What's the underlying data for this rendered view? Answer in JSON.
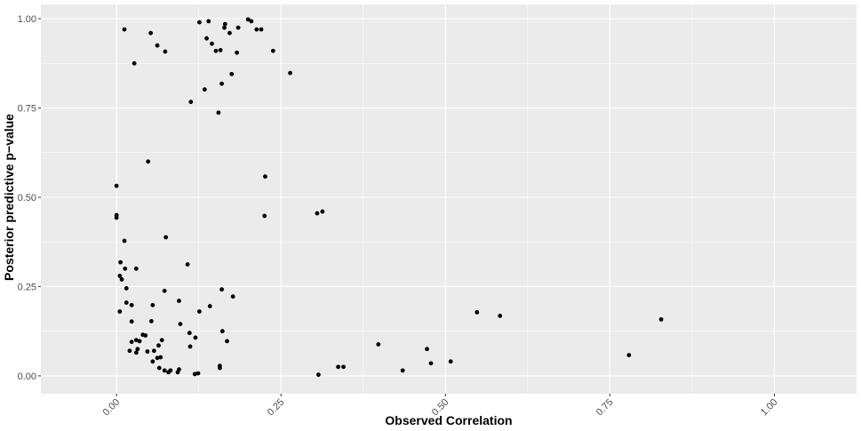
{
  "chart_data": {
    "type": "scatter",
    "title": "",
    "xlabel": "Observed Correlation",
    "ylabel": "Posterior predictive p−value",
    "xlim": [
      -0.115,
      1.125
    ],
    "ylim": [
      -0.05,
      1.04
    ],
    "x_ticks": [
      {
        "value": 0.0,
        "label": "0.00"
      },
      {
        "value": 0.25,
        "label": "0.25"
      },
      {
        "value": 0.5,
        "label": "0.50"
      },
      {
        "value": 0.75,
        "label": "0.75"
      },
      {
        "value": 1.0,
        "label": "1.00"
      }
    ],
    "y_ticks": [
      {
        "value": 0.0,
        "label": "0.00"
      },
      {
        "value": 0.25,
        "label": "0.25"
      },
      {
        "value": 0.5,
        "label": "0.50"
      },
      {
        "value": 0.75,
        "label": "0.75"
      },
      {
        "value": 1.0,
        "label": "1.00"
      }
    ],
    "grid": true,
    "legend": "none",
    "colors": {
      "panel": "#ebebeb",
      "grid": "#ffffff",
      "point": "#000000"
    },
    "points": [
      [
        0.012,
        0.97
      ],
      [
        0.052,
        0.96
      ],
      [
        0.062,
        0.925
      ],
      [
        0.027,
        0.875
      ],
      [
        0.074,
        0.908
      ],
      [
        0.126,
        0.99
      ],
      [
        0.14,
        0.993
      ],
      [
        0.137,
        0.945
      ],
      [
        0.145,
        0.93
      ],
      [
        0.151,
        0.91
      ],
      [
        0.158,
        0.912
      ],
      [
        0.164,
        0.975
      ],
      [
        0.165,
        0.985
      ],
      [
        0.172,
        0.96
      ],
      [
        0.185,
        0.975
      ],
      [
        0.2,
        0.998
      ],
      [
        0.205,
        0.993
      ],
      [
        0.213,
        0.97
      ],
      [
        0.22,
        0.97
      ],
      [
        0.183,
        0.905
      ],
      [
        0.238,
        0.91
      ],
      [
        0.134,
        0.802
      ],
      [
        0.16,
        0.818
      ],
      [
        0.175,
        0.845
      ],
      [
        0.113,
        0.767
      ],
      [
        0.264,
        0.848
      ],
      [
        0.155,
        0.737
      ],
      [
        0.048,
        0.6
      ],
      [
        0.0,
        0.532
      ],
      [
        0.0,
        0.45
      ],
      [
        0.0,
        0.443
      ],
      [
        0.226,
        0.558
      ],
      [
        0.225,
        0.448
      ],
      [
        0.305,
        0.455
      ],
      [
        0.313,
        0.46
      ],
      [
        0.075,
        0.388
      ],
      [
        0.012,
        0.378
      ],
      [
        0.006,
        0.318
      ],
      [
        0.108,
        0.312
      ],
      [
        0.03,
        0.3
      ],
      [
        0.013,
        0.3
      ],
      [
        0.005,
        0.28
      ],
      [
        0.008,
        0.27
      ],
      [
        0.015,
        0.245
      ],
      [
        0.073,
        0.238
      ],
      [
        0.16,
        0.242
      ],
      [
        0.177,
        0.222
      ],
      [
        0.095,
        0.21
      ],
      [
        0.023,
        0.198
      ],
      [
        0.055,
        0.198
      ],
      [
        0.015,
        0.205
      ],
      [
        0.005,
        0.18
      ],
      [
        0.126,
        0.18
      ],
      [
        0.142,
        0.195
      ],
      [
        0.053,
        0.153
      ],
      [
        0.023,
        0.152
      ],
      [
        0.097,
        0.145
      ],
      [
        0.111,
        0.12
      ],
      [
        0.12,
        0.107
      ],
      [
        0.161,
        0.125
      ],
      [
        0.168,
        0.097
      ],
      [
        0.04,
        0.115
      ],
      [
        0.044,
        0.113
      ],
      [
        0.064,
        0.085
      ],
      [
        0.069,
        0.1
      ],
      [
        0.035,
        0.097
      ],
      [
        0.023,
        0.095
      ],
      [
        0.03,
        0.1
      ],
      [
        0.112,
        0.082
      ],
      [
        0.02,
        0.07
      ],
      [
        0.03,
        0.065
      ],
      [
        0.057,
        0.07
      ],
      [
        0.032,
        0.075
      ],
      [
        0.047,
        0.068
      ],
      [
        0.055,
        0.04
      ],
      [
        0.062,
        0.05
      ],
      [
        0.067,
        0.052
      ],
      [
        0.065,
        0.022
      ],
      [
        0.073,
        0.015
      ],
      [
        0.079,
        0.01
      ],
      [
        0.082,
        0.015
      ],
      [
        0.093,
        0.01
      ],
      [
        0.095,
        0.018
      ],
      [
        0.119,
        0.005
      ],
      [
        0.124,
        0.007
      ],
      [
        0.157,
        0.028
      ],
      [
        0.157,
        0.022
      ],
      [
        0.307,
        0.003
      ],
      [
        0.337,
        0.025
      ],
      [
        0.345,
        0.025
      ],
      [
        0.398,
        0.088
      ],
      [
        0.435,
        0.015
      ],
      [
        0.472,
        0.075
      ],
      [
        0.478,
        0.035
      ],
      [
        0.508,
        0.04
      ],
      [
        0.548,
        0.178
      ],
      [
        0.583,
        0.168
      ],
      [
        0.779,
        0.058
      ],
      [
        0.828,
        0.158
      ]
    ]
  }
}
